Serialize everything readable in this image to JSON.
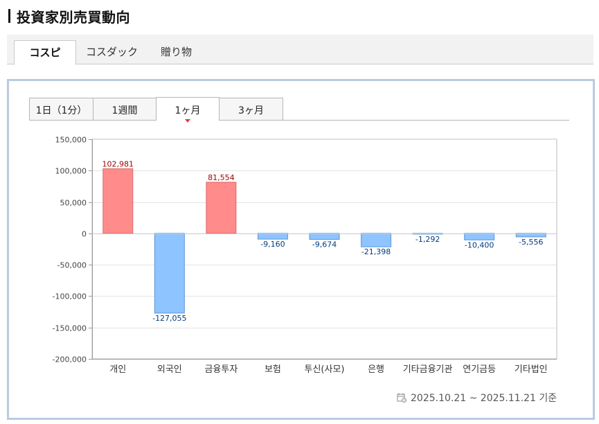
{
  "page": {
    "title": "投資家別売買動向"
  },
  "market_tabs": [
    {
      "label": "コスピ",
      "active": true
    },
    {
      "label": "コスダック",
      "active": false
    },
    {
      "label": "贈り物",
      "active": false
    }
  ],
  "period_tabs": [
    {
      "label": "1日（1分）",
      "active": false
    },
    {
      "label": "1週間",
      "active": false
    },
    {
      "label": "1ヶ月",
      "active": true
    },
    {
      "label": "3ヶ月",
      "active": false
    }
  ],
  "footer": {
    "date_range": "2025.10.21 ~ 2025.11.21 기준",
    "icon": "calendar-icon"
  },
  "colors": {
    "positive_fill": "#ff8b8b",
    "positive_stroke": "#d96a6a",
    "positive_label": "#990000",
    "negative_fill": "#8ec4ff",
    "negative_stroke": "#5c96d8",
    "negative_label": "#003a80",
    "panel_border": "#b7cbe3"
  },
  "chart_data": {
    "type": "bar",
    "categories": [
      "개인",
      "외국인",
      "금융투자",
      "보험",
      "투신(사모)",
      "은행",
      "기타금융기관",
      "연기금등",
      "기타법인"
    ],
    "values": [
      102981,
      -127055,
      81554,
      -9160,
      -9674,
      -21398,
      -1292,
      -10400,
      -5556
    ],
    "value_labels": [
      "102,981",
      "-127,055",
      "81,554",
      "-9,160",
      "-9,674",
      "-21,398",
      "-1,292",
      "-10,400",
      "-5,556"
    ],
    "yticks": [
      150000,
      100000,
      50000,
      0,
      -50000,
      -100000,
      -150000,
      -200000
    ],
    "ytick_labels": [
      "150,000",
      "100,000",
      "50,000",
      "0",
      "-50,000",
      "-100,000",
      "-150,000",
      "-200,000"
    ],
    "ylim": [
      -200000,
      150000
    ],
    "grid": true,
    "title": "",
    "xlabel": "",
    "ylabel": ""
  }
}
